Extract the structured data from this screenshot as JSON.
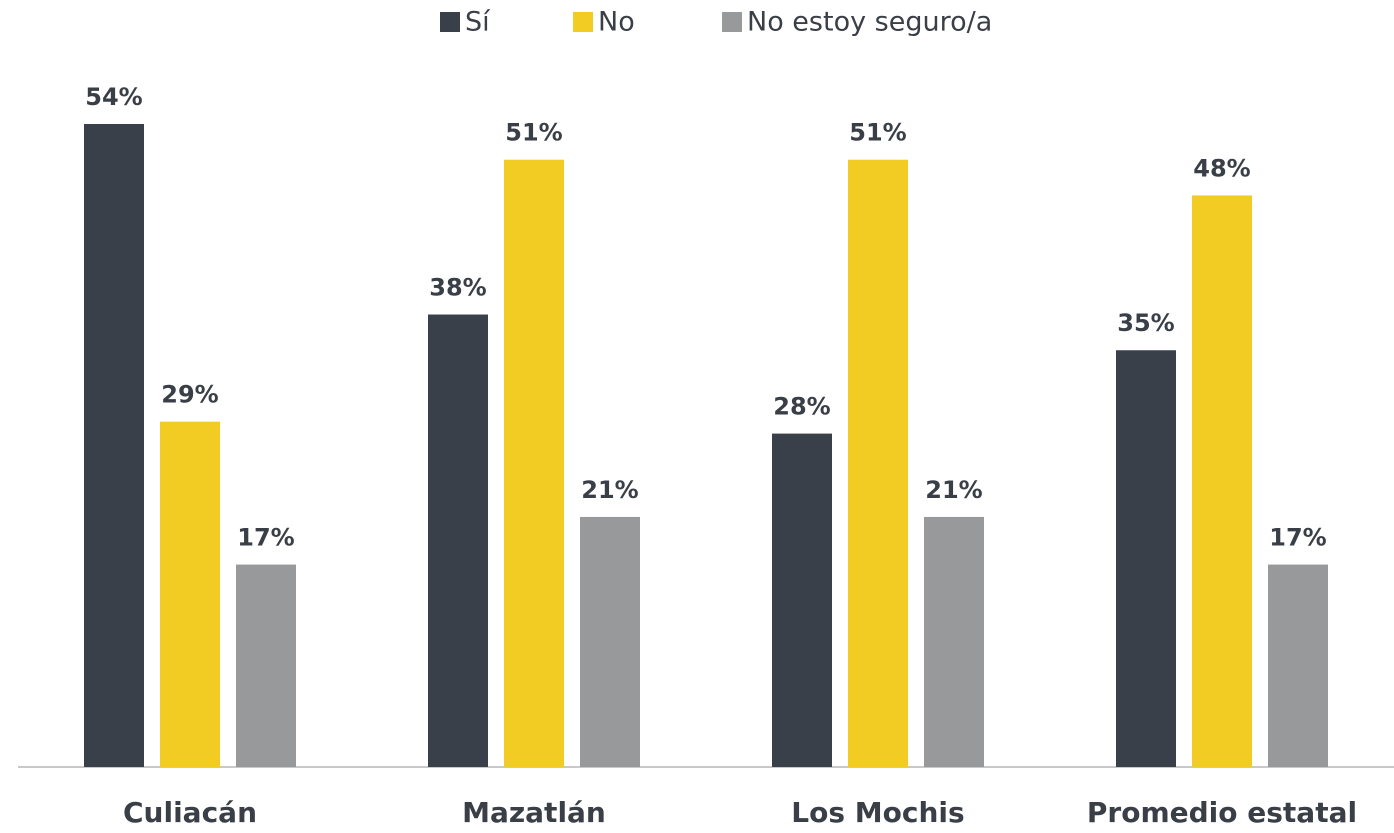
{
  "chart_data": {
    "type": "bar",
    "categories": [
      "Culiacán",
      "Mazatlán",
      "Los Mochis",
      "Promedio estatal"
    ],
    "series": [
      {
        "name": "Sí",
        "color": "#394049",
        "values": [
          54,
          38,
          28,
          35
        ],
        "value_labels": [
          "54%",
          "38%",
          "28%",
          "35%"
        ]
      },
      {
        "name": "No",
        "color": "#f2cb23",
        "values": [
          29,
          51,
          51,
          48
        ],
        "value_labels": [
          "29%",
          "51%",
          "51%",
          "48%"
        ]
      },
      {
        "name": "No estoy seguro/a",
        "color": "#98999b",
        "values": [
          17,
          21,
          21,
          17
        ],
        "value_labels": [
          "17%",
          "21%",
          "21%",
          "17%"
        ]
      }
    ],
    "legend": "top"
  }
}
